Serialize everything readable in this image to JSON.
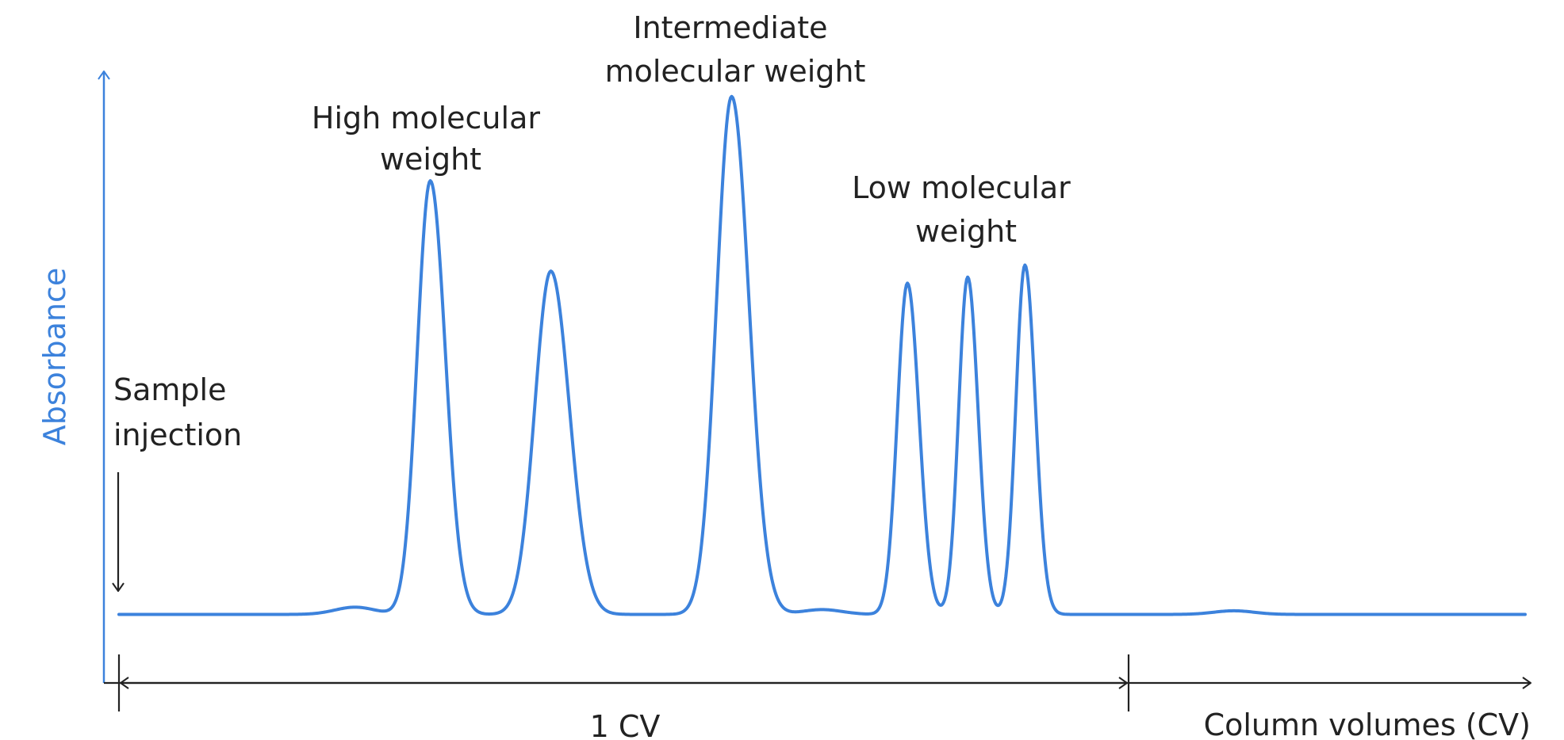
{
  "chart_data": {
    "type": "line",
    "title": "",
    "xlabel": "Column volumes (CV)",
    "ylabel": "Absorbance",
    "line_color": "#3c82dc",
    "axis_color": "#3c82dc",
    "annotation_color": "#222222",
    "grid": false,
    "legend": "none",
    "annotations": {
      "sample_injection": [
        "Sample",
        "injection"
      ],
      "high_mw": [
        "High molecular",
        "weight"
      ],
      "intermediate_mw": [
        "Intermediate",
        "molecular weight"
      ],
      "low_mw": [
        "Low molecular",
        "weight"
      ],
      "one_cv": "1 CV"
    },
    "xlim": [
      0,
      1.4
    ],
    "ylim": [
      0,
      1.0
    ],
    "baseline": 0.027,
    "peaks": [
      {
        "group": "High molecular weight",
        "x": 0.31,
        "height": 0.72,
        "width": 0.013
      },
      {
        "group": "High molecular weight",
        "x": 0.43,
        "height": 0.57,
        "width": 0.016
      },
      {
        "group": "Intermediate molecular weight",
        "x": 0.61,
        "height": 0.86,
        "width": 0.015
      },
      {
        "group": "Low molecular weight",
        "x": 0.785,
        "height": 0.55,
        "width": 0.01
      },
      {
        "group": "Low molecular weight",
        "x": 0.845,
        "height": 0.56,
        "width": 0.009
      },
      {
        "group": "Low molecular weight",
        "x": 0.902,
        "height": 0.58,
        "width": 0.009
      }
    ],
    "minor_bumps": [
      {
        "x": 0.235,
        "height": 0.012
      },
      {
        "x": 0.7,
        "height": 0.008
      },
      {
        "x": 1.11,
        "height": 0.006
      }
    ],
    "one_cv_range": [
      0,
      1.0
    ]
  }
}
